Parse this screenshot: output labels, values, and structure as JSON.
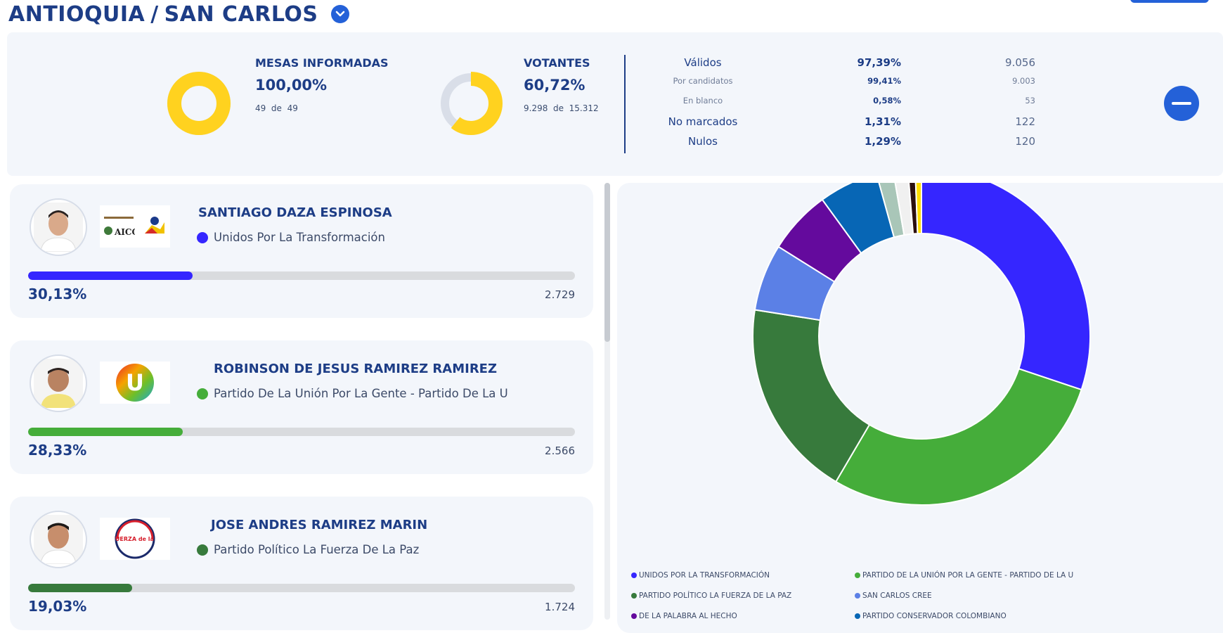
{
  "header": {
    "department": "ANTIOQUIA",
    "separator": "/",
    "municipality": "SAN CARLOS",
    "dropdown_icon": "chevron-down-icon"
  },
  "summary": {
    "mesas": {
      "label": "MESAS INFORMADAS",
      "pct": "100,00%",
      "count": "49",
      "of_word": "de",
      "total": "49",
      "fraction": 1.0
    },
    "votantes": {
      "label": "VOTANTES",
      "pct": "60,72%",
      "count": "9.298",
      "of_word": "de",
      "total": "15.312",
      "fraction": 0.6072
    },
    "rows": [
      {
        "label": "Válidos",
        "pct": "97,39%",
        "count": "9.056",
        "size": "big"
      },
      {
        "label": "Por candidatos",
        "pct": "99,41%",
        "count": "9.003",
        "size": "small"
      },
      {
        "label": "En blanco",
        "pct": "0,58%",
        "count": "53",
        "size": "small"
      },
      {
        "label": "No marcados",
        "pct": "1,31%",
        "count": "122",
        "size": "big"
      },
      {
        "label": "Nulos",
        "pct": "1,29%",
        "count": "120",
        "size": "big"
      }
    ],
    "collapse_icon": "minus-icon",
    "colors": {
      "ring": "#ffd21f",
      "ring_track": "#d9dee8"
    }
  },
  "candidates": [
    {
      "name": "SANTIAGO DAZA ESPINOSA",
      "party": "Unidos Por La Transformación",
      "pct": "30,13%",
      "votes": "2.729",
      "fraction": 0.3013,
      "color": "#3526ff",
      "logo": "aico-logo",
      "logo_text": "AICO"
    },
    {
      "name": "ROBINSON DE JESUS RAMIREZ RAMIREZ",
      "party": "Partido De La Unión Por La Gente - Partido De La U",
      "pct": "28,33%",
      "votes": "2.566",
      "fraction": 0.2833,
      "color": "#45ad3a",
      "logo": "partido-u-logo",
      "logo_text": "U"
    },
    {
      "name": "JOSE ANDRES RAMIREZ MARIN",
      "party": "Partido Político La Fuerza De La Paz",
      "pct": "19,03%",
      "votes": "1.724",
      "fraction": 0.1903,
      "color": "#377a3c",
      "logo": "fuerza-paz-logo",
      "logo_text": "La FUERZA de la PAZ"
    }
  ],
  "chart_data": {
    "type": "pie",
    "categories": [
      "UNIDOS POR LA TRANSFORMACIÓN",
      "PARTIDO DE LA UNIÓN POR LA GENTE - PARTIDO DE LA U",
      "PARTIDO POLÍTICO LA FUERZA DE LA PAZ",
      "SAN CARLOS CREE",
      "DE LA PALABRA AL HECHO",
      "PARTIDO CONSERVADOR COLOMBIANO",
      "",
      "",
      "",
      ""
    ],
    "values": [
      30.13,
      28.33,
      19.03,
      6.4,
      6.1,
      5.7,
      1.6,
      1.4,
      0.7,
      0.6
    ],
    "colors": [
      "#3526ff",
      "#45ad3a",
      "#377a3c",
      "#5b80e6",
      "#640a9d",
      "#0766b5",
      "#a9c6b8",
      "#f0f0f0",
      "#2b0f0f",
      "#ffdd00"
    ],
    "donut": true,
    "legend_position": "bottom"
  }
}
